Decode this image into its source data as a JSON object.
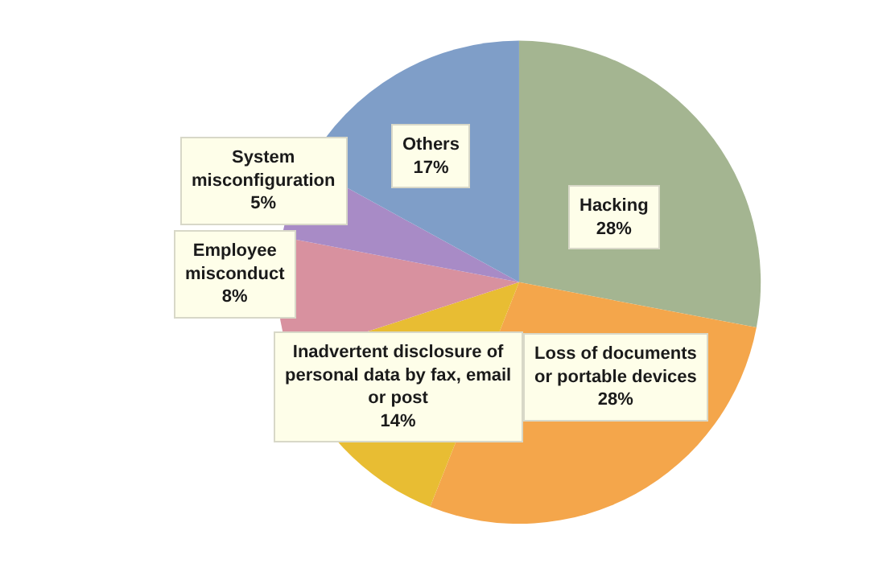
{
  "chart_data": {
    "type": "pie",
    "categories": [
      "Hacking",
      "Loss of documents or portable devices",
      "Inadvertent disclosure of personal data by fax, email or post",
      "Employee misconduct",
      "System misconfiguration",
      "Others"
    ],
    "values": [
      28,
      28,
      14,
      8,
      5,
      17
    ],
    "value_labels": [
      "28%",
      "28%",
      "14%",
      "8%",
      "5%",
      "17%"
    ],
    "colors": [
      "#a4b591",
      "#f4a64b",
      "#e8bd33",
      "#d8919f",
      "#a88bc6",
      "#7f9ec8"
    ],
    "legend": false
  }
}
